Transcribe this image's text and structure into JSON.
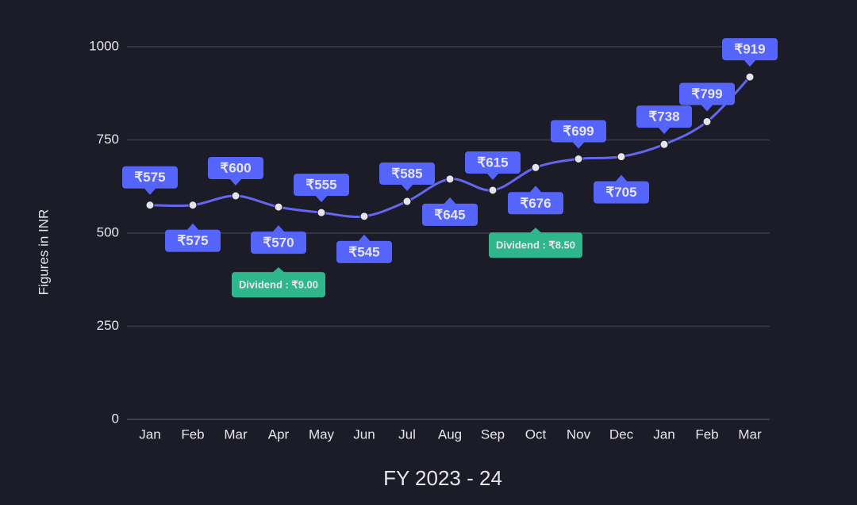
{
  "chart_data": {
    "type": "line",
    "y_label": "Figures in INR",
    "x_label": "FY 2023 - 24",
    "categories": [
      "Jan",
      "Feb",
      "Mar",
      "Apr",
      "May",
      "Jun",
      "Jul",
      "Aug",
      "Sep",
      "Oct",
      "Nov",
      "Dec",
      "Jan",
      "Feb",
      "Mar"
    ],
    "values": [
      575,
      575,
      600,
      570,
      555,
      545,
      585,
      645,
      615,
      676,
      699,
      705,
      738,
      799,
      919
    ],
    "value_labels": [
      "₹575",
      "₹575",
      "₹600",
      "₹570",
      "₹555",
      "₹545",
      "₹585",
      "₹645",
      "₹615",
      "₹676",
      "₹699",
      "₹705",
      "₹738",
      "₹799",
      "₹919"
    ],
    "color": "#6466ee",
    "ylim": [
      0,
      1000
    ],
    "yticks": [
      0,
      250,
      500,
      750,
      1000
    ],
    "grid": true,
    "annotations": [
      {
        "x": "Apr",
        "text": "Dividend : ₹9.00"
      },
      {
        "x": "Oct",
        "text": "Dividend : ₹8.50"
      }
    ]
  }
}
